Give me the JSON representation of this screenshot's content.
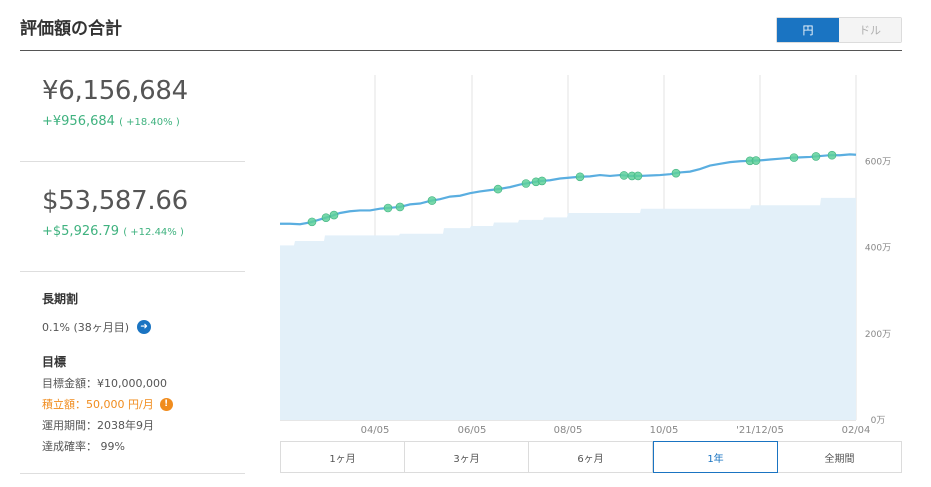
{
  "header": {
    "title": "評価額の合計"
  },
  "currency_toggle": {
    "options": [
      "円",
      "ドル"
    ],
    "selected": "円"
  },
  "summary_jpy": {
    "amount": "¥6,156,684",
    "gain": "+¥956,684",
    "gain_pct": "( +18.40% )"
  },
  "summary_usd": {
    "amount": "$53,587.66",
    "gain": "+$5,926.79",
    "gain_pct": "( +12.44% )"
  },
  "long_term": {
    "heading": "長期割",
    "value": "0.1% (38ヶ月目)"
  },
  "goal": {
    "heading": "目標",
    "target": "目標金額：¥10,000,000",
    "contribution": "積立額：50,000 円/月",
    "period": "運用期間：2038年9月",
    "probability": "達成確率： 99%"
  },
  "periods": [
    "1ヶ月",
    "3ヶ月",
    "6ヶ月",
    "1年",
    "全期間"
  ],
  "active_period": "1年",
  "colors": {
    "accent": "#1a74c2",
    "gain": "#3fb27f",
    "line": "#5aaee0",
    "area": "#e3f0f9",
    "marker": "#5ed09a",
    "warning": "#f08c1e"
  },
  "chart_data": {
    "type": "line",
    "x_tick_labels": [
      "04/05",
      "06/05",
      "08/05",
      "10/05",
      "'21/12/05",
      "02/04"
    ],
    "y_tick_labels": [
      "0万",
      "200万",
      "400万",
      "600万"
    ],
    "ylim": [
      0,
      800
    ],
    "ylabel_unit": "万",
    "series": [
      {
        "kind": "line",
        "x": [
          0,
          10,
          20,
          30,
          40,
          50,
          60,
          70,
          80,
          90,
          100,
          110,
          120,
          130,
          140,
          150,
          160,
          170,
          180,
          190,
          200,
          210,
          220,
          230,
          240,
          250,
          260,
          270,
          280,
          290,
          300,
          310,
          320,
          330,
          340,
          350,
          360,
          370,
          380,
          390,
          400,
          410,
          420,
          430,
          440,
          450,
          460,
          470,
          480,
          490,
          500,
          510,
          520,
          530,
          540,
          550,
          560,
          570,
          576
        ],
        "values": [
          455,
          455,
          454,
          458,
          465,
          472,
          480,
          484,
          486,
          486,
          490,
          492,
          494,
          500,
          502,
          508,
          512,
          518,
          520,
          526,
          530,
          533,
          536,
          540,
          546,
          550,
          554,
          556,
          560,
          562,
          564,
          565,
          568,
          566,
          568,
          566,
          566,
          567,
          568,
          570,
          574,
          576,
          582,
          590,
          594,
          598,
          600,
          601,
          602,
          604,
          606,
          608,
          609,
          610,
          612,
          614,
          614,
          616,
          615
        ]
      },
      {
        "kind": "area",
        "x": [
          0,
          14,
          15,
          44,
          45,
          119,
          120,
          163,
          164,
          190,
          191,
          213,
          214,
          238,
          239,
          263,
          264,
          287,
          288,
          360,
          361,
          470,
          471,
          540,
          541,
          576
        ],
        "values": [
          405,
          405,
          415,
          415,
          428,
          428,
          432,
          432,
          445,
          445,
          450,
          450,
          458,
          458,
          464,
          464,
          470,
          470,
          480,
          480,
          490,
          490,
          498,
          498,
          515,
          515
        ]
      }
    ],
    "markers_x": [
      32,
      46,
      54,
      108,
      120,
      152,
      218,
      246,
      256,
      262,
      300,
      344,
      352,
      358,
      396,
      470,
      476,
      514,
      536,
      552
    ]
  }
}
